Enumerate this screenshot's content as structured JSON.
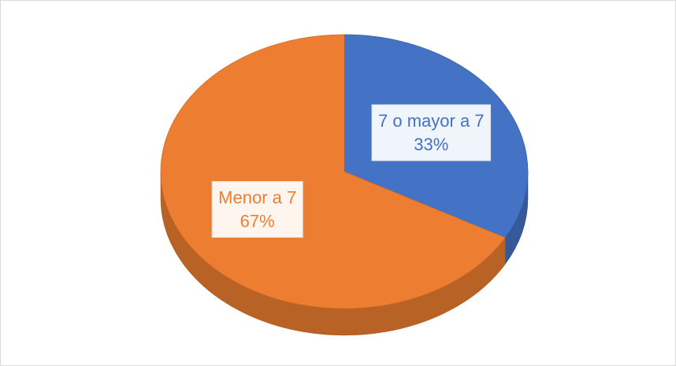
{
  "chart_data": {
    "type": "pie",
    "categories": [
      "7 o mayor a 7",
      "Menor a 7"
    ],
    "values": [
      33,
      67
    ],
    "value_labels": [
      "33%",
      "67%"
    ],
    "colors": [
      "#4472c4",
      "#ed7d31"
    ]
  }
}
